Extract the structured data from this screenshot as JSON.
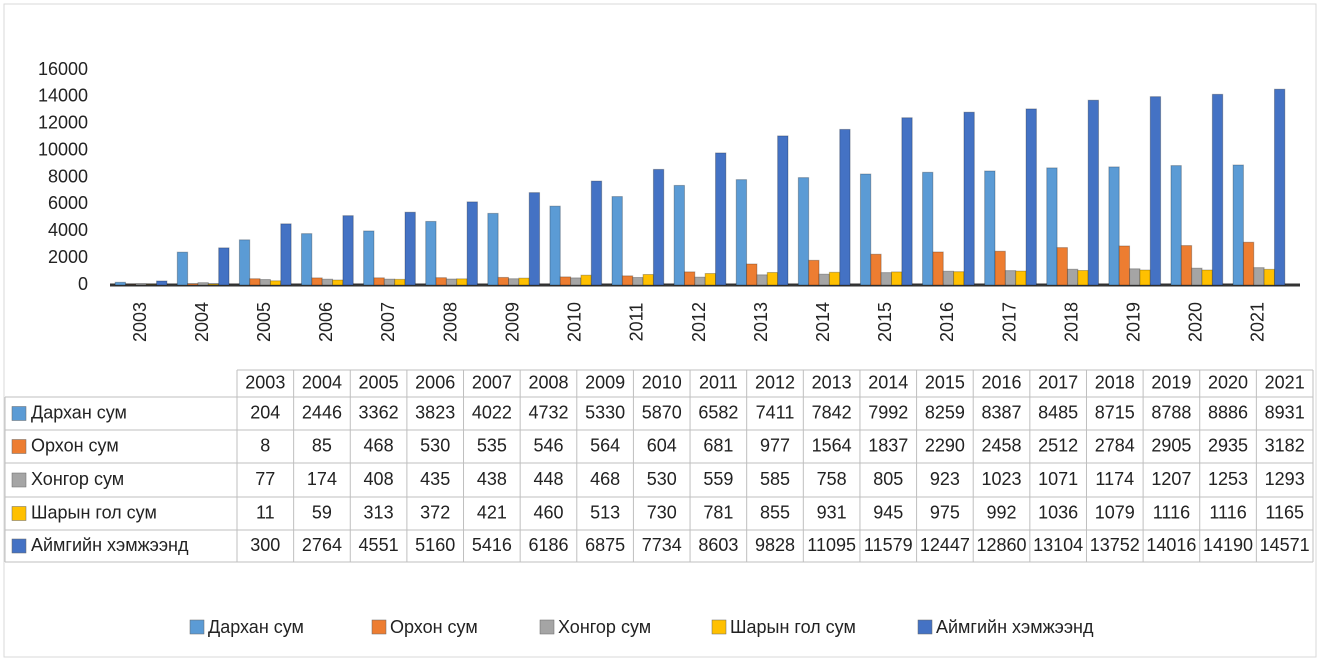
{
  "chart_data": {
    "type": "bar",
    "categories": [
      "2003",
      "2004",
      "2005",
      "2006",
      "2007",
      "2008",
      "2009",
      "2010",
      "2011",
      "2012",
      "2013",
      "2014",
      "2015",
      "2016",
      "2017",
      "2018",
      "2019",
      "2020",
      "2021"
    ],
    "series": [
      {
        "name": "Дархан сум",
        "color": "#5b9bd5",
        "values": [
          204,
          2446,
          3362,
          3823,
          4022,
          4732,
          5330,
          5870,
          6582,
          7411,
          7842,
          7992,
          8259,
          8387,
          8485,
          8715,
          8788,
          8886,
          8931
        ]
      },
      {
        "name": "Орхон сум",
        "color": "#ed7d31",
        "values": [
          8,
          85,
          468,
          530,
          535,
          546,
          564,
          604,
          681,
          977,
          1564,
          1837,
          2290,
          2458,
          2512,
          2784,
          2905,
          2935,
          3182
        ]
      },
      {
        "name": "Хонгор сум",
        "color": "#a5a5a5",
        "values": [
          77,
          174,
          408,
          435,
          438,
          448,
          468,
          530,
          559,
          585,
          758,
          805,
          923,
          1023,
          1071,
          1174,
          1207,
          1253,
          1293
        ]
      },
      {
        "name": "Шарын гол сум",
        "color": "#ffc000",
        "values": [
          11,
          59,
          313,
          372,
          421,
          460,
          513,
          730,
          781,
          855,
          931,
          945,
          975,
          992,
          1036,
          1079,
          1116,
          1116,
          1165
        ]
      },
      {
        "name": "Аймгийн хэмжээнд",
        "color": "#4472c4",
        "values": [
          300,
          2764,
          4551,
          5160,
          5416,
          6186,
          6875,
          7734,
          8603,
          9828,
          11095,
          11579,
          12447,
          12860,
          13104,
          13752,
          14016,
          14190,
          14571
        ]
      }
    ],
    "ylim": [
      0,
      16000
    ],
    "yticks": [
      0,
      2000,
      4000,
      6000,
      8000,
      10000,
      12000,
      14000,
      16000
    ],
    "grid": false,
    "legend": "bottom",
    "data_table": true
  }
}
